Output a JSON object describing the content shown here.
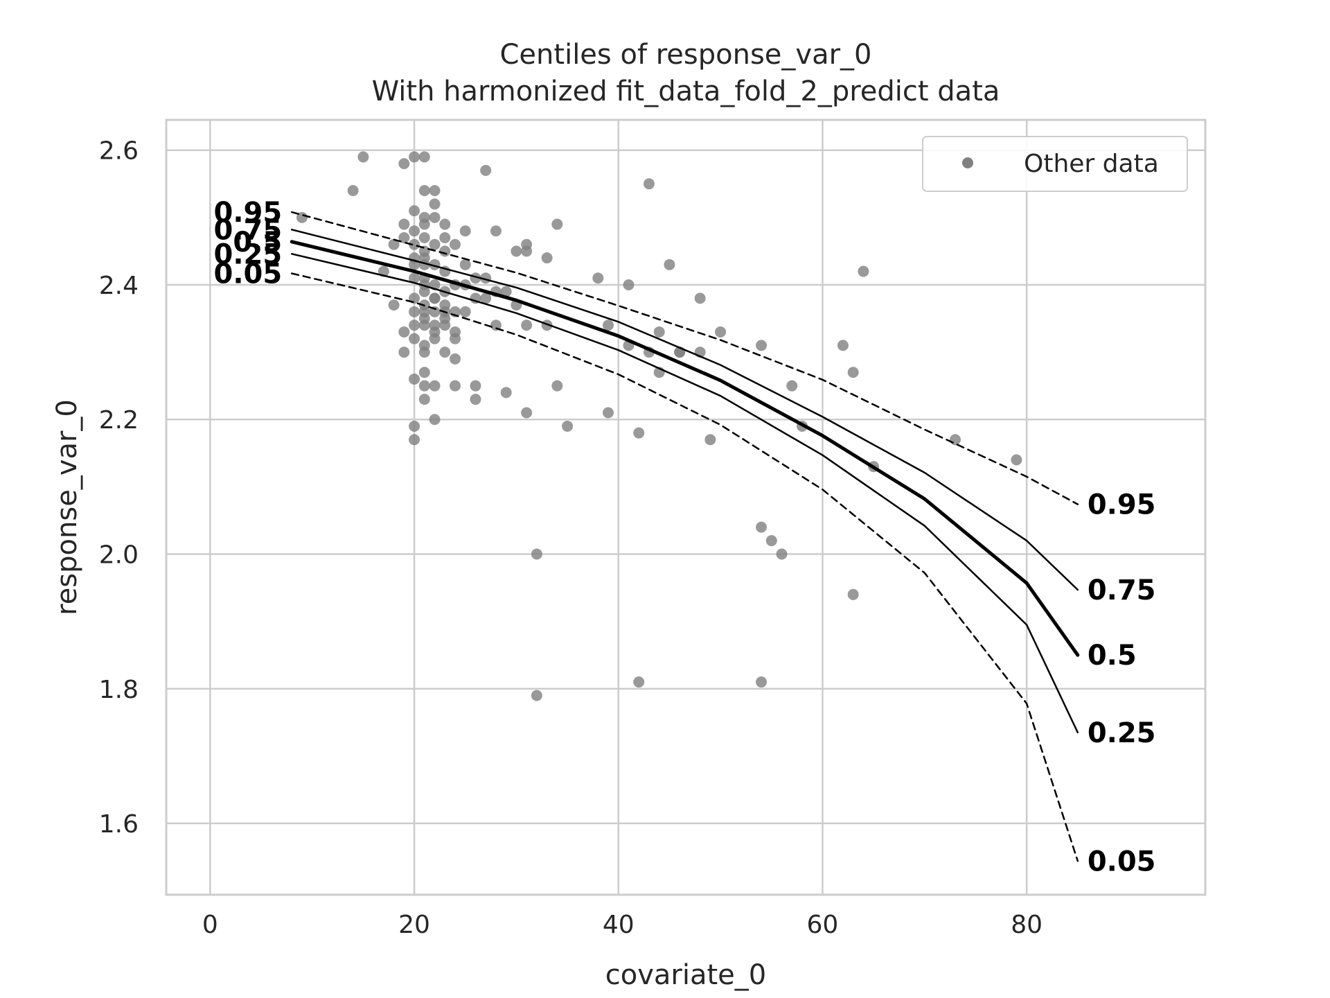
{
  "chart_data": {
    "type": "scatter",
    "title": "Centiles of response_var_0",
    "subtitle": "With harmonized fit_data_fold_2_predict data",
    "xlabel": "covariate_0",
    "ylabel": "response_var_0",
    "xlim": [
      -4.3,
      97.5
    ],
    "ylim": [
      1.494,
      2.645
    ],
    "xticks": [
      0,
      20,
      40,
      60,
      80
    ],
    "xtick_labels": [
      "0",
      "20",
      "40",
      "60",
      "80"
    ],
    "yticks": [
      1.6,
      1.8,
      2.0,
      2.2,
      2.4,
      2.6
    ],
    "ytick_labels": [
      "1.6",
      "1.8",
      "2.0",
      "2.2",
      "2.4",
      "2.6"
    ],
    "grid": true,
    "legend": {
      "placement": "top-right",
      "entries": [
        {
          "label": "Other data",
          "color": "#808080",
          "marker": "circle"
        }
      ]
    },
    "colors": {
      "points": "#808080",
      "lines": "#000000",
      "grid": "#cccccc",
      "spine": "#cccccc",
      "text": "#262626"
    },
    "series": [
      {
        "kind": "points",
        "x": [
          9,
          14,
          15,
          17,
          18,
          18,
          19,
          19,
          19,
          19,
          19,
          20,
          20,
          20,
          20,
          20,
          20,
          20,
          20,
          20,
          20,
          20,
          20,
          20,
          20,
          21,
          21,
          21,
          21,
          21,
          21,
          21,
          21,
          21,
          21,
          21,
          21,
          21,
          21,
          21,
          21,
          21,
          21,
          21,
          21,
          22,
          22,
          22,
          22,
          22,
          22,
          22,
          22,
          22,
          22,
          22,
          22,
          22,
          22,
          23,
          23,
          23,
          23,
          23,
          23,
          23,
          23,
          23,
          23,
          24,
          24,
          24,
          24,
          24,
          24,
          24,
          25,
          25,
          25,
          25,
          26,
          26,
          26,
          26,
          27,
          27,
          27,
          28,
          28,
          28,
          29,
          29,
          30,
          30,
          31,
          31,
          31,
          31,
          32,
          32,
          33,
          33,
          34,
          34,
          35,
          38,
          39,
          39,
          41,
          41,
          42,
          42,
          43,
          43,
          44,
          44,
          45,
          46,
          46,
          48,
          48,
          49,
          50,
          54,
          54,
          54,
          55,
          56,
          57,
          58,
          62,
          63,
          63,
          64,
          65,
          73,
          79
        ],
        "y": [
          2.5,
          2.54,
          2.59,
          2.42,
          2.46,
          2.37,
          2.58,
          2.47,
          2.33,
          2.3,
          2.49,
          2.59,
          2.51,
          2.48,
          2.44,
          2.41,
          2.38,
          2.34,
          2.26,
          2.19,
          2.17,
          2.46,
          2.43,
          2.36,
          2.32,
          2.59,
          2.54,
          2.5,
          2.47,
          2.45,
          2.43,
          2.41,
          2.39,
          2.36,
          2.34,
          2.31,
          2.27,
          2.25,
          2.23,
          2.49,
          2.44,
          2.4,
          2.35,
          2.3,
          2.37,
          2.54,
          2.52,
          2.5,
          2.46,
          2.43,
          2.4,
          2.38,
          2.36,
          2.34,
          2.33,
          2.32,
          2.25,
          2.2,
          2.38,
          2.49,
          2.45,
          2.42,
          2.39,
          2.37,
          2.36,
          2.34,
          2.3,
          2.47,
          2.35,
          2.46,
          2.4,
          2.36,
          2.32,
          2.29,
          2.25,
          2.33,
          2.48,
          2.43,
          2.4,
          2.36,
          2.41,
          2.38,
          2.25,
          2.23,
          2.57,
          2.41,
          2.38,
          2.48,
          2.39,
          2.34,
          2.39,
          2.24,
          2.45,
          2.37,
          2.46,
          2.45,
          2.34,
          2.21,
          2.0,
          1.79,
          2.44,
          2.34,
          2.49,
          2.25,
          2.19,
          2.41,
          2.34,
          2.21,
          2.4,
          2.31,
          2.18,
          1.81,
          2.55,
          2.3,
          2.33,
          2.27,
          2.43,
          2.3,
          2.3,
          2.38,
          2.3,
          2.17,
          2.33,
          2.31,
          2.04,
          1.81,
          2.02,
          2.0,
          2.25,
          2.19,
          2.31,
          2.27,
          1.94,
          2.42,
          2.13,
          2.17,
          2.14
        ]
      },
      {
        "name": "0.95",
        "kind": "centile",
        "style": "dashed",
        "width": "thin",
        "x": [
          8,
          20,
          30,
          40,
          50,
          60,
          70,
          80,
          85
        ],
        "y": [
          2.508,
          2.459,
          2.418,
          2.369,
          2.318,
          2.259,
          2.185,
          2.115,
          2.074
        ]
      },
      {
        "name": "0.75",
        "kind": "centile",
        "style": "solid",
        "width": "thin",
        "x": [
          8,
          20,
          30,
          40,
          50,
          60,
          70,
          80,
          85
        ],
        "y": [
          2.482,
          2.436,
          2.396,
          2.345,
          2.281,
          2.204,
          2.121,
          2.02,
          1.947
        ]
      },
      {
        "name": "0.5",
        "kind": "centile",
        "style": "solid",
        "width": "thick",
        "x": [
          8,
          20,
          30,
          40,
          50,
          60,
          70,
          80,
          85
        ],
        "y": [
          2.464,
          2.42,
          2.377,
          2.324,
          2.258,
          2.176,
          2.082,
          1.957,
          1.85
        ]
      },
      {
        "name": "0.25",
        "kind": "centile",
        "style": "solid",
        "width": "thin",
        "x": [
          8,
          20,
          30,
          40,
          50,
          60,
          70,
          80,
          85
        ],
        "y": [
          2.446,
          2.403,
          2.358,
          2.303,
          2.235,
          2.147,
          2.042,
          1.895,
          1.735
        ]
      },
      {
        "name": "0.05",
        "kind": "centile",
        "style": "dashed",
        "width": "thin",
        "x": [
          8,
          20,
          30,
          40,
          50,
          60,
          70,
          80,
          85
        ],
        "y": [
          2.417,
          2.374,
          2.326,
          2.267,
          2.192,
          2.096,
          1.972,
          1.778,
          1.544
        ]
      }
    ]
  }
}
